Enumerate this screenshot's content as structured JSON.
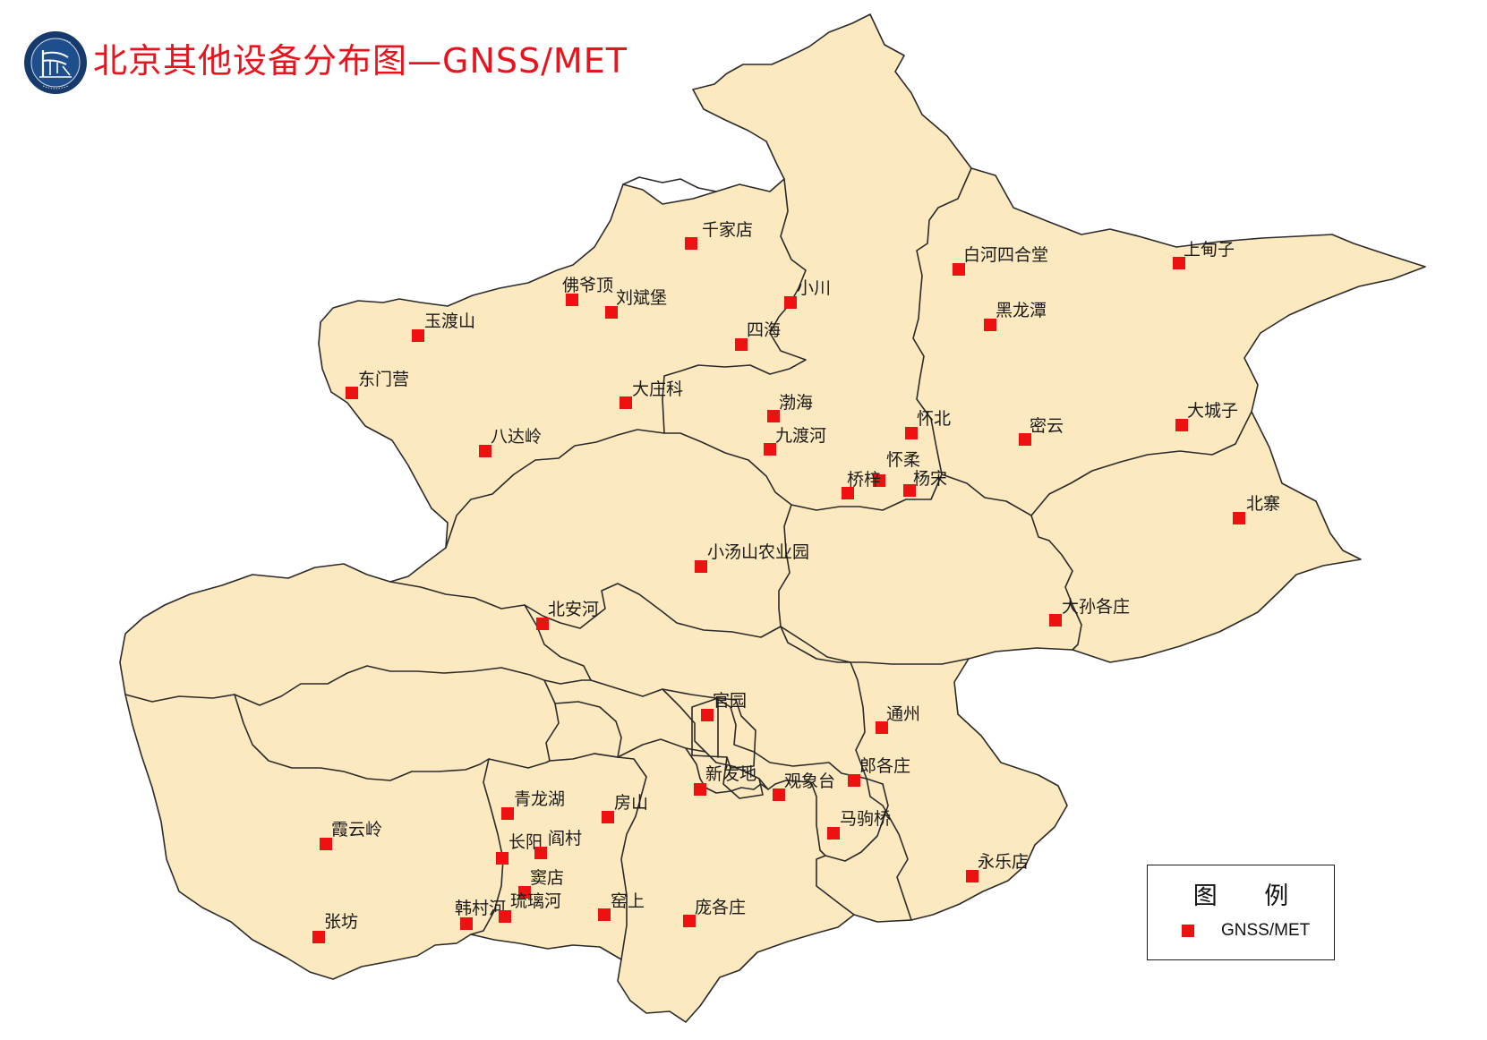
{
  "title": "北京其他设备分布图—GNSS/MET",
  "logo": {
    "icon": "beijing-meteorological-service-logo",
    "ring_text_en": "BEIJING METEOROLOGICAL SERVICE",
    "ring_text_zh": "北京市气象局"
  },
  "colors": {
    "land": "#fde9bf",
    "boundary": "#2a2a2a",
    "marker": "#ee1111",
    "title": "#e8141d"
  },
  "legend": {
    "title": "图 例",
    "items": [
      {
        "label": "GNSS/MET",
        "symbol": "red-square"
      }
    ]
  },
  "stations": [
    {
      "name": "千家店"
    },
    {
      "name": "白河四合堂"
    },
    {
      "name": "上甸子"
    },
    {
      "name": "佛爷顶"
    },
    {
      "name": "刘斌堡"
    },
    {
      "name": "小川"
    },
    {
      "name": "玉渡山"
    },
    {
      "name": "四海"
    },
    {
      "name": "黑龙潭"
    },
    {
      "name": "东门营"
    },
    {
      "name": "大庄科"
    },
    {
      "name": "渤海"
    },
    {
      "name": "怀北"
    },
    {
      "name": "密云"
    },
    {
      "name": "大城子"
    },
    {
      "name": "八达岭"
    },
    {
      "name": "九渡河"
    },
    {
      "name": "怀柔"
    },
    {
      "name": "桥梓"
    },
    {
      "name": "杨宋"
    },
    {
      "name": "北寨"
    },
    {
      "name": "小汤山农业园"
    },
    {
      "name": "大孙各庄"
    },
    {
      "name": "北安河"
    },
    {
      "name": "官园"
    },
    {
      "name": "通州"
    },
    {
      "name": "新发地"
    },
    {
      "name": "观象台"
    },
    {
      "name": "郎各庄"
    },
    {
      "name": "青龙湖"
    },
    {
      "name": "房山"
    },
    {
      "name": "马驹桥"
    },
    {
      "name": "霞云岭"
    },
    {
      "name": "长阳"
    },
    {
      "name": "阎村"
    },
    {
      "name": "永乐店"
    },
    {
      "name": "窦店"
    },
    {
      "name": "韩村河"
    },
    {
      "name": "琉璃河"
    },
    {
      "name": "窑上"
    },
    {
      "name": "庞各庄"
    },
    {
      "name": "张坊"
    }
  ]
}
